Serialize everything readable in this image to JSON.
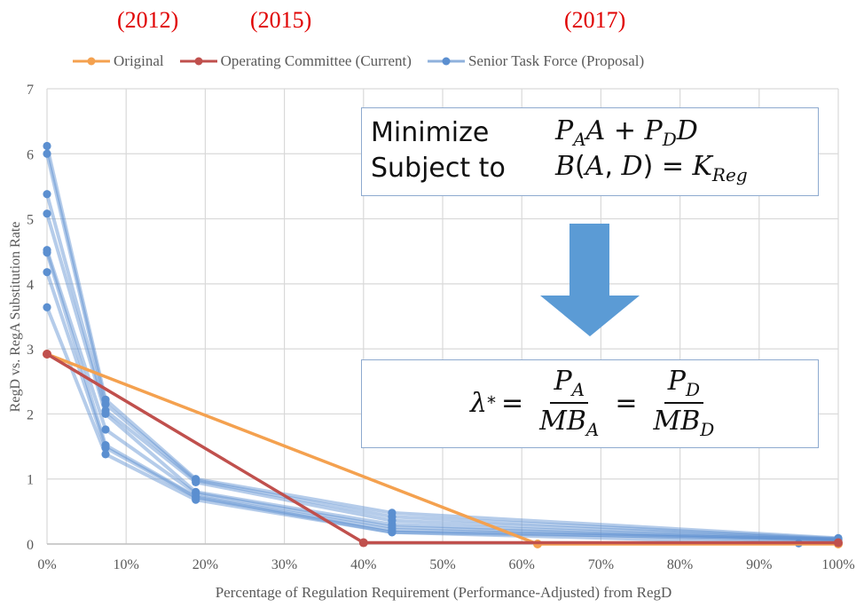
{
  "annotations": {
    "year_original": "(2012)",
    "year_operating": "(2015)",
    "year_senior": "(2017)"
  },
  "equations": {
    "minimize_label": "Minimize",
    "subject_label": "Subject to",
    "objective": "P_A A + P_D D",
    "constraint": "B(A, D) = K_Reg",
    "result": "λ* = P_A / MB_A = P_D / MB_D"
  },
  "colors": {
    "original": "#f4a14f",
    "operating": "#c0504d",
    "senior": "#5b8fd0",
    "arrow": "#5b9bd5",
    "box_border": "#8eaacf",
    "annotation": "#e00000"
  },
  "chart_data": {
    "type": "line",
    "xlabel": "Percentage of Regulation Requirement (Performance-Adjusted)  from RegD",
    "ylabel": "RegD vs. RegA Substitution Rate",
    "xlim": [
      0,
      100
    ],
    "ylim": [
      0,
      7
    ],
    "x_ticks": [
      "0%",
      "10%",
      "20%",
      "30%",
      "40%",
      "50%",
      "60%",
      "70%",
      "80%",
      "90%",
      "100%"
    ],
    "y_ticks": [
      "0",
      "1",
      "2",
      "3",
      "4",
      "5",
      "6",
      "7"
    ],
    "grid": true,
    "legend_position": "top",
    "series": [
      {
        "name": "Original",
        "color_key": "original",
        "points": [
          [
            0,
            2.92
          ],
          [
            62,
            0.0
          ],
          [
            100,
            0.0
          ]
        ]
      },
      {
        "name": "Operating Committee (Current)",
        "color_key": "operating",
        "points": [
          [
            0,
            2.92
          ],
          [
            40,
            0.02
          ],
          [
            100,
            0.02
          ]
        ]
      },
      {
        "name": "Senior Task Force (Proposal)",
        "color_key": "senior",
        "lines": [
          [
            [
              0,
              6.12
            ],
            [
              7.4,
              2.22
            ],
            [
              18.8,
              1.0
            ],
            [
              43.6,
              0.48
            ],
            [
              100,
              0.09
            ]
          ],
          [
            [
              0,
              6.0
            ],
            [
              7.4,
              2.15
            ],
            [
              18.8,
              0.98
            ],
            [
              43.6,
              0.42
            ],
            [
              100,
              0.08
            ]
          ],
          [
            [
              0,
              5.38
            ],
            [
              7.4,
              2.05
            ],
            [
              18.8,
              0.95
            ],
            [
              43.6,
              0.36
            ],
            [
              100,
              0.07
            ]
          ],
          [
            [
              0,
              5.08
            ],
            [
              7.4,
              2.0
            ],
            [
              18.8,
              0.8
            ],
            [
              43.6,
              0.3
            ],
            [
              100,
              0.06
            ]
          ],
          [
            [
              0,
              4.52
            ],
            [
              7.4,
              1.76
            ],
            [
              18.8,
              0.78
            ],
            [
              43.6,
              0.26
            ],
            [
              100,
              0.05
            ]
          ],
          [
            [
              0,
              4.48
            ],
            [
              7.4,
              1.52
            ],
            [
              18.8,
              0.73
            ],
            [
              43.6,
              0.22
            ],
            [
              100,
              0.04
            ]
          ],
          [
            [
              0,
              4.18
            ],
            [
              7.4,
              1.48
            ],
            [
              18.8,
              0.72
            ],
            [
              43.6,
              0.18
            ],
            [
              95,
              0.01
            ]
          ],
          [
            [
              0,
              3.64
            ],
            [
              7.4,
              1.38
            ],
            [
              18.8,
              0.68
            ],
            [
              43.6,
              0.18
            ],
            [
              100,
              0.08
            ]
          ]
        ]
      }
    ]
  }
}
